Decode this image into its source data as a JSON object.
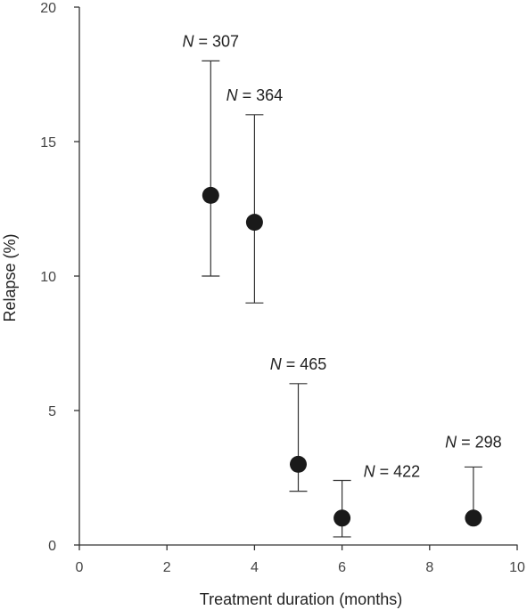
{
  "chart_data": {
    "type": "scatter",
    "title": "",
    "xlabel": "Treatment duration (months)",
    "ylabel": "Relapse (%)",
    "xlim": [
      0,
      10
    ],
    "ylim": [
      0,
      20
    ],
    "xticks": [
      0,
      2,
      4,
      6,
      8,
      10
    ],
    "yticks": [
      0,
      5,
      10,
      15,
      20
    ],
    "grid": false,
    "marker_color": "#1a1a1a",
    "points": [
      {
        "x": 3,
        "y": 13,
        "err_low": 10,
        "err_high": 18,
        "n_prefix": "N",
        "n_value": "= 307"
      },
      {
        "x": 4,
        "y": 12,
        "err_low": 9,
        "err_high": 16,
        "n_prefix": "N",
        "n_value": "= 364"
      },
      {
        "x": 5,
        "y": 3,
        "err_low": 2,
        "err_high": 6,
        "n_prefix": "N",
        "n_value": "= 465"
      },
      {
        "x": 6,
        "y": 1,
        "err_low": 0.3,
        "err_high": 2.4,
        "n_prefix": "N",
        "n_value": "= 422"
      },
      {
        "x": 9,
        "y": 1,
        "err_low": null,
        "err_high": 2.9,
        "n_prefix": "N",
        "n_value": "= 298"
      }
    ]
  }
}
